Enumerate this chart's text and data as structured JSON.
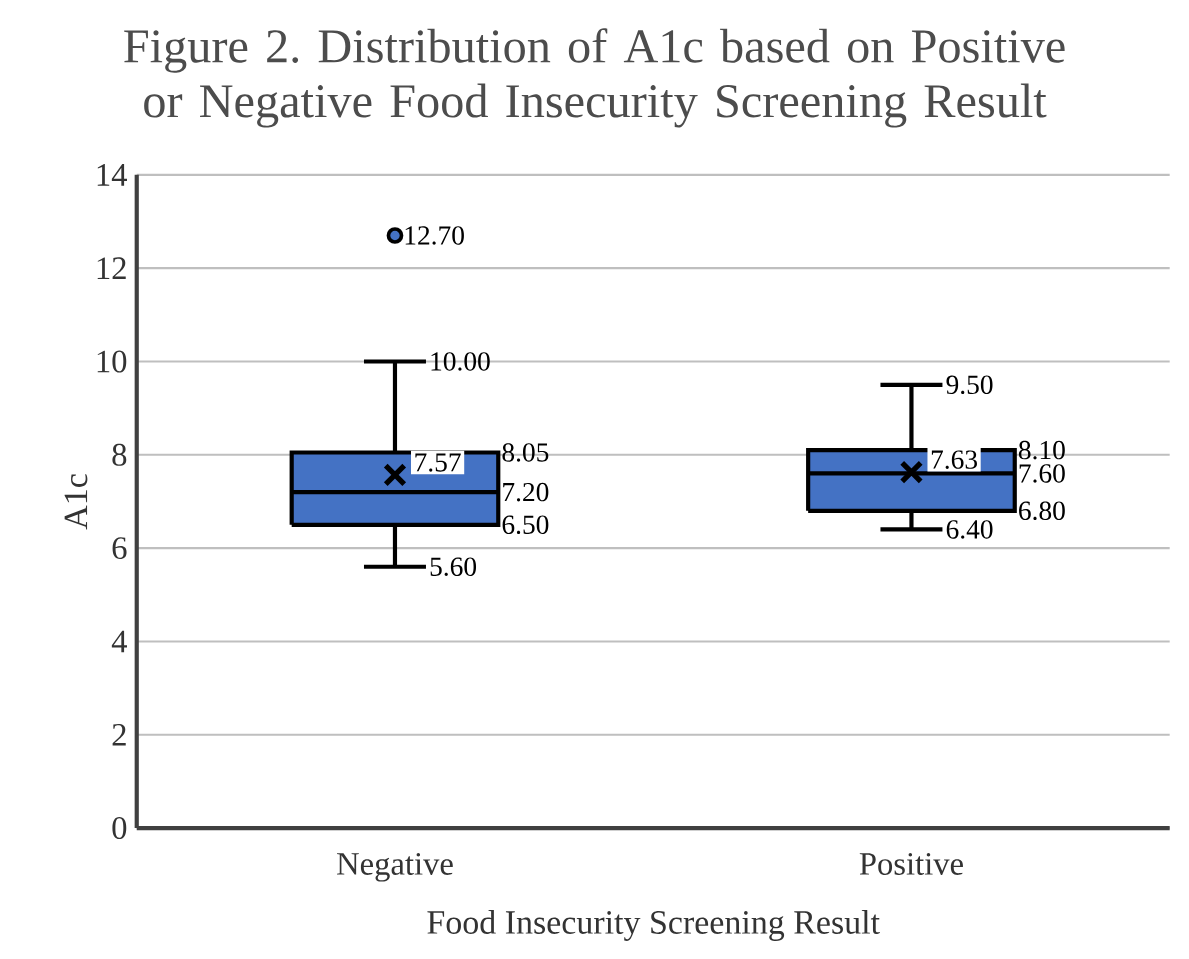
{
  "chart_data": {
    "type": "box",
    "title": "Figure 2. Distribution of A1c based on Positive or Negative Food Insecurity Screening Result",
    "xlabel": "Food Insecurity Screening Result",
    "ylabel": "A1c",
    "categories": [
      "Negative",
      "Positive"
    ],
    "boxes": [
      {
        "low": 5.6,
        "q1": 6.5,
        "median": 7.2,
        "q3": 8.05,
        "high": 10.0,
        "mean": 7.57,
        "outliers": [
          12.7
        ]
      },
      {
        "low": 6.4,
        "q1": 6.8,
        "median": 7.6,
        "q3": 8.1,
        "high": 9.5,
        "mean": 7.63
      }
    ],
    "color": "#4472c4",
    "ylim": [
      0,
      14
    ],
    "yticks": [
      0,
      2,
      4,
      6,
      8,
      10,
      12,
      14
    ],
    "grid": "y",
    "annotations": [
      "12.70",
      "10.00",
      "8.05",
      "7.57",
      "7.20",
      "6.50",
      "5.60",
      "9.50",
      "8.10",
      "7.63",
      "7.60",
      "6.80",
      "6.40"
    ]
  }
}
